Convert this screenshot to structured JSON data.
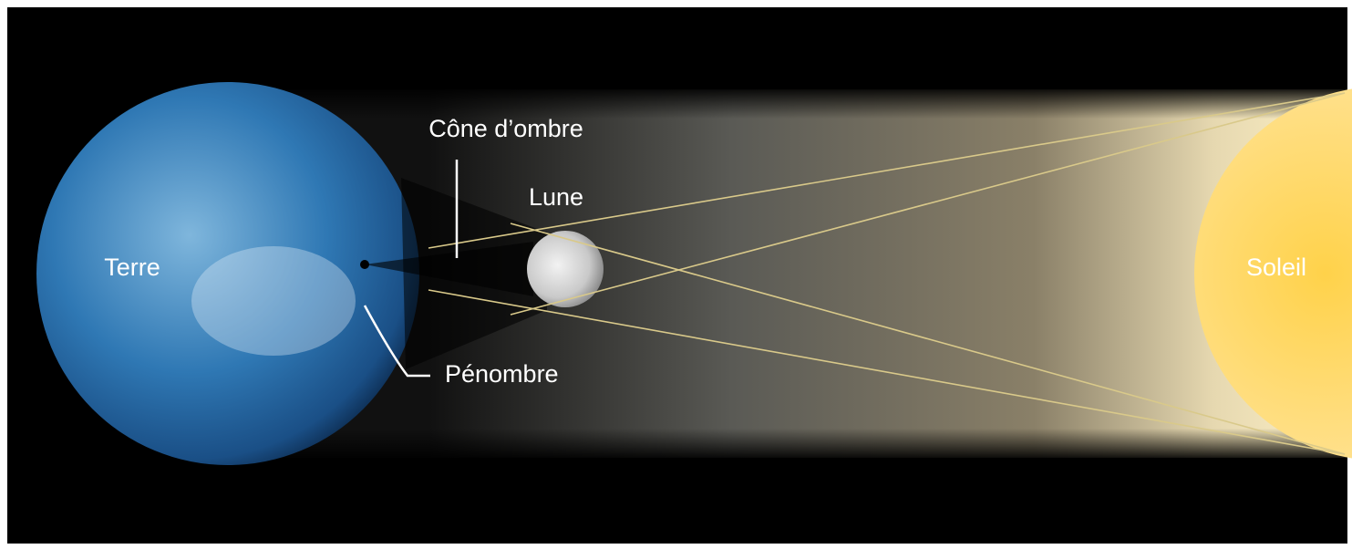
{
  "labels": {
    "earth": "Terre",
    "moon": "Lune",
    "sun": "Soleil",
    "umbra": "Cône d’ombre",
    "penumbra": "Pénombre"
  }
}
